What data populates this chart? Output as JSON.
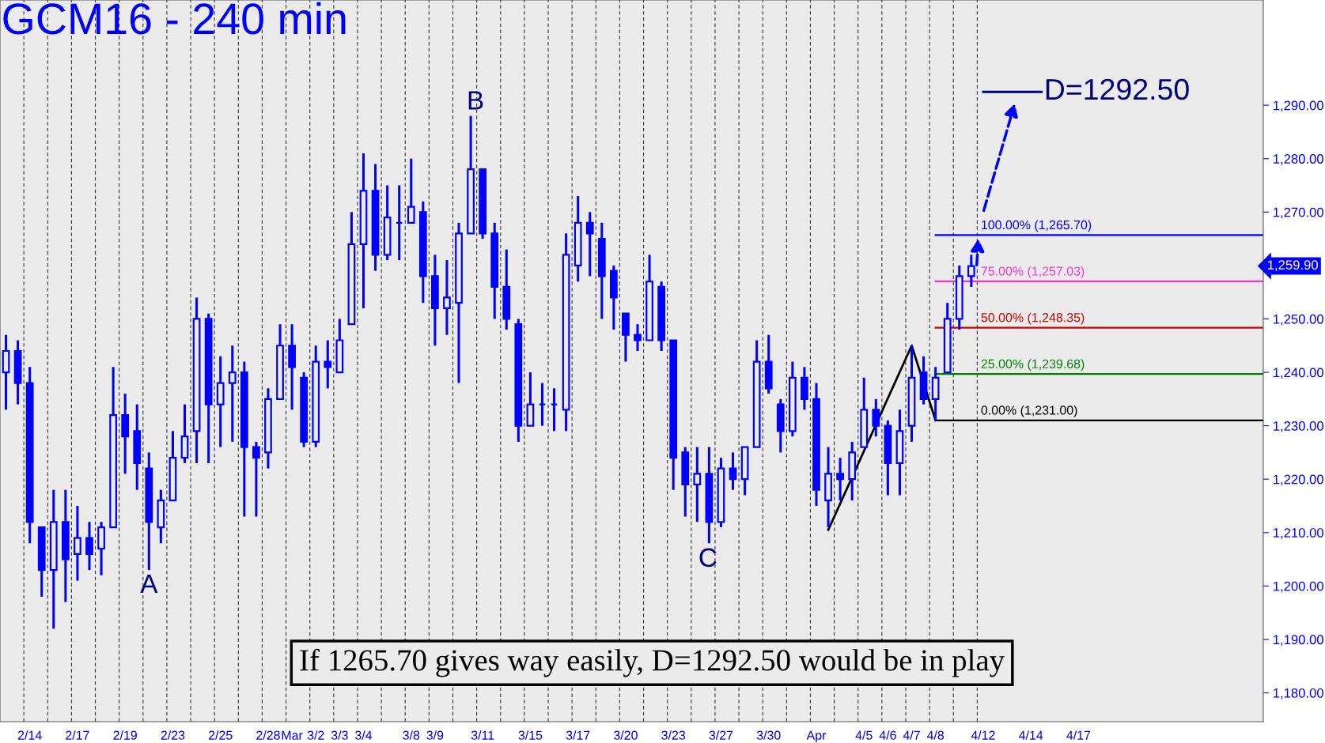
{
  "chart_data": {
    "type": "candlestick",
    "title": "GCM16 - 240 min",
    "categories": [
      null,
      null,
      "2/14",
      null,
      null,
      null,
      "2/17",
      null,
      null,
      null,
      "2/19",
      null,
      null,
      null,
      "2/23",
      null,
      null,
      null,
      "2/25",
      null,
      null,
      null,
      "2/28",
      null,
      "Mar",
      null,
      "3/2",
      null,
      "3/3",
      null,
      "3/4",
      null,
      null,
      null,
      "3/8",
      null,
      "3/9",
      null,
      null,
      null,
      "3/11",
      null,
      null,
      null,
      "3/15",
      null,
      null,
      null,
      "3/17",
      null,
      null,
      null,
      "3/20",
      null,
      null,
      null,
      "3/23",
      null,
      null,
      null,
      "3/27",
      null,
      null,
      null,
      "3/30",
      null,
      null,
      null,
      "Apr",
      null,
      null,
      null,
      "4/5",
      null,
      "4/6",
      null,
      "4/7",
      null,
      "4/8",
      null,
      null,
      null,
      "4/12",
      null,
      null,
      null,
      "4/14",
      null,
      null,
      null,
      "4/17",
      null,
      null,
      null,
      null,
      null,
      null,
      null,
      null,
      null,
      null,
      null,
      null,
      null,
      null,
      null
    ],
    "series": [
      {
        "type": "candlestick",
        "color": "#0000ff",
        "ohlc": [
          [
            1240,
            1247,
            1233,
            1244
          ],
          [
            1244,
            1246,
            1234,
            1238
          ],
          [
            1238,
            1241,
            1208,
            1212
          ],
          [
            1211,
            1211,
            1198,
            1203
          ],
          [
            1203,
            1218,
            1192,
            1212
          ],
          [
            1212,
            1218,
            1197,
            1205
          ],
          [
            1206,
            1215,
            1201,
            1209
          ],
          [
            1209,
            1212,
            1203,
            1206
          ],
          [
            1207,
            1212,
            1202,
            1211
          ],
          [
            1211,
            1241,
            1211,
            1232
          ],
          [
            1232,
            1236,
            1221,
            1228
          ],
          [
            1229,
            1234,
            1218,
            1223
          ],
          [
            1222,
            1225,
            1203,
            1212
          ],
          [
            1211,
            1218,
            1208,
            1216
          ],
          [
            1216,
            1229,
            1216,
            1224
          ],
          [
            1224,
            1234,
            1223,
            1228
          ],
          [
            1229,
            1254,
            1223,
            1250
          ],
          [
            1250,
            1251,
            1223,
            1234
          ],
          [
            1234,
            1243,
            1226,
            1238
          ],
          [
            1238,
            1245,
            1227,
            1240
          ],
          [
            1240,
            1242,
            1213,
            1226
          ],
          [
            1226,
            1227,
            1213,
            1224
          ],
          [
            1225,
            1237,
            1222,
            1235
          ],
          [
            1235,
            1249,
            1235,
            1245
          ],
          [
            1245,
            1249,
            1233,
            1241
          ],
          [
            1239,
            1240,
            1226,
            1227
          ],
          [
            1227,
            1245,
            1226,
            1242
          ],
          [
            1242,
            1246,
            1237,
            1241
          ],
          [
            1240,
            1250,
            1240,
            1246
          ],
          [
            1249,
            1270,
            1249,
            1264
          ],
          [
            1264,
            1281,
            1252,
            1274
          ],
          [
            1274,
            1279,
            1259,
            1262
          ],
          [
            1262,
            1275,
            1261,
            1269
          ],
          [
            1268,
            1275,
            1261,
            1268
          ],
          [
            1268,
            1280,
            1268,
            1271
          ],
          [
            1270,
            1272,
            1253,
            1258
          ],
          [
            1258,
            1262,
            1245,
            1252
          ],
          [
            1252,
            1261,
            1247,
            1254
          ],
          [
            1253,
            1268,
            1238,
            1266
          ],
          [
            1266,
            1288,
            1266,
            1278
          ],
          [
            1278,
            1278,
            1265,
            1266
          ],
          [
            1266,
            1268,
            1250,
            1256
          ],
          [
            1256,
            1263,
            1248,
            1250
          ],
          [
            1249,
            1250,
            1227,
            1230
          ],
          [
            1230,
            1240,
            1230,
            1234
          ],
          [
            1234,
            1238,
            1230,
            1234
          ],
          [
            1234,
            1237,
            1229,
            1234
          ],
          [
            1233,
            1266,
            1229,
            1262
          ],
          [
            1260,
            1273,
            1257,
            1268
          ],
          [
            1268,
            1270,
            1258,
            1266
          ],
          [
            1265,
            1268,
            1250,
            1258
          ],
          [
            1259,
            1260,
            1248,
            1254
          ],
          [
            1251,
            1251,
            1242,
            1247
          ],
          [
            1247,
            1249,
            1244,
            1246
          ],
          [
            1246,
            1262,
            1246,
            1257
          ],
          [
            1256,
            1257,
            1244,
            1246
          ],
          [
            1246,
            1246,
            1218,
            1224
          ],
          [
            1225,
            1226,
            1213,
            1219
          ],
          [
            1219,
            1226,
            1212,
            1221
          ],
          [
            1221,
            1226,
            1208,
            1212
          ],
          [
            1212,
            1224,
            1211,
            1222
          ],
          [
            1222,
            1225,
            1218,
            1220
          ],
          [
            1220,
            1226,
            1217,
            1226
          ],
          [
            1226,
            1246,
            1226,
            1242
          ],
          [
            1242,
            1247,
            1236,
            1237
          ],
          [
            1234,
            1235,
            1225,
            1229
          ],
          [
            1229,
            1242,
            1228,
            1239
          ],
          [
            1239,
            1241,
            1233,
            1235
          ],
          [
            1235,
            1238,
            1215,
            1218
          ],
          [
            1216,
            1226,
            1211,
            1221
          ],
          [
            1221,
            1224,
            1216,
            1220
          ],
          [
            1220,
            1227,
            1216,
            1225
          ],
          [
            1226,
            1239,
            1226,
            1233
          ],
          [
            1233,
            1235,
            1228,
            1230
          ],
          [
            1230,
            1231,
            1217,
            1223
          ],
          [
            1223,
            1233,
            1217,
            1229
          ],
          [
            1230,
            1245,
            1227,
            1239
          ],
          [
            1240,
            1243,
            1234,
            1235
          ],
          [
            1235,
            1241,
            1231,
            1239
          ],
          [
            1240,
            1253,
            1240,
            1250
          ],
          [
            1250,
            1260,
            1248,
            1258
          ],
          [
            1258,
            1262,
            1256,
            1259.9
          ],
          null,
          null,
          null,
          null,
          null,
          null,
          null,
          null,
          null,
          null,
          null,
          null,
          null,
          null,
          null,
          null,
          null,
          null,
          null,
          null,
          null,
          null,
          null,
          null
        ]
      },
      {
        "type": "line",
        "color": "#000000",
        "values": [
          null,
          null,
          null,
          null,
          null,
          null,
          null,
          null,
          null,
          null,
          null,
          null,
          null,
          null,
          null,
          null,
          null,
          null,
          null,
          null,
          null,
          null,
          null,
          null,
          null,
          null,
          null,
          null,
          null,
          null,
          null,
          null,
          null,
          null,
          null,
          null,
          null,
          null,
          null,
          null,
          null,
          null,
          null,
          null,
          null,
          null,
          null,
          null,
          null,
          null,
          null,
          null,
          null,
          null,
          null,
          null,
          null,
          null,
          null,
          null,
          null,
          null,
          null,
          null,
          null,
          null,
          null,
          null,
          null,
          1210.5,
          null,
          null,
          null,
          null,
          null,
          null,
          1245,
          null,
          1231,
          null,
          null,
          null,
          null,
          null,
          null,
          null,
          null,
          null,
          null,
          null,
          null,
          null,
          null,
          null,
          null,
          null,
          null,
          null,
          null,
          null,
          null,
          null,
          null,
          null,
          null,
          null
        ]
      }
    ],
    "ylim": [
      1174.6,
      1309.7
    ],
    "yticks": [
      {
        "value": 1180,
        "label": "1,180.00"
      },
      {
        "value": 1190,
        "label": "1,190.00"
      },
      {
        "value": 1200,
        "label": "1,200.00"
      },
      {
        "value": 1210,
        "label": "1,210.00"
      },
      {
        "value": 1220,
        "label": "1,220.00"
      },
      {
        "value": 1230,
        "label": "1,230.00"
      },
      {
        "value": 1240,
        "label": "1,240.00"
      },
      {
        "value": 1250,
        "label": "1,250.00"
      },
      {
        "value": 1260,
        "label": null
      },
      {
        "value": 1270,
        "label": "1,270.00"
      },
      {
        "value": 1280,
        "label": "1,280.00"
      },
      {
        "value": 1290,
        "label": "1,290.00"
      }
    ],
    "ref_lines": [
      {
        "axis": "y",
        "value": 1265.7,
        "label": "100.00% (1,265.70)",
        "color": "#0000ff",
        "line_style": "solid"
      },
      {
        "axis": "y",
        "value": 1257.03,
        "label": "75.00% (1,257.03)",
        "color": "#ff33cc",
        "line_style": "solid"
      },
      {
        "axis": "y",
        "value": 1248.35,
        "label": "50.00% (1,248.35)",
        "color": "#cc0000",
        "line_style": "solid"
      },
      {
        "axis": "y",
        "value": 1239.68,
        "label": "25.00% (1,239.68)",
        "color": "#008000",
        "line_style": "solid"
      },
      {
        "axis": "y",
        "value": 1231.0,
        "label": "0.00% (1,231.00)",
        "color": "#000000",
        "line_style": "solid"
      },
      {
        "axis": "y",
        "value": 1292.5,
        "label": "D=1292.50",
        "color": "#000080",
        "line_style": "solid"
      }
    ],
    "annotations": [
      "A",
      "B",
      "C",
      "If 1265.70 gives way easily, D=1292.50 would be in play",
      "1,259.90"
    ],
    "grid": "x",
    "legend": false
  }
}
